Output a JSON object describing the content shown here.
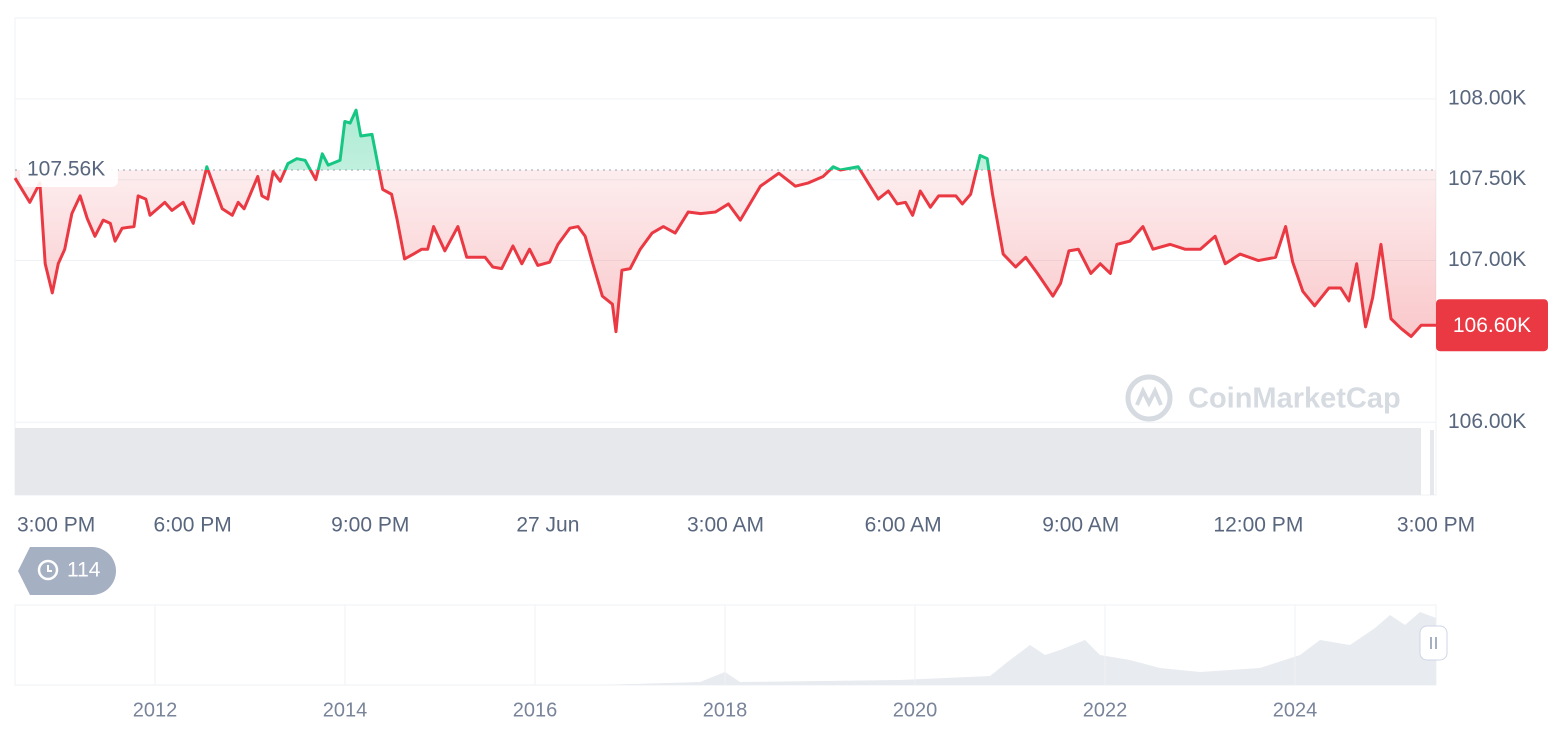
{
  "chart_data": {
    "type": "line",
    "x": [
      0,
      0.25,
      0.42,
      0.51,
      0.63,
      0.73,
      0.84,
      0.96,
      1.1,
      1.22,
      1.35,
      1.49,
      1.61,
      1.69,
      1.81,
      2.01,
      2.08,
      2.21,
      2.28,
      2.53,
      2.65,
      2.84,
      3.01,
      3.24,
      3.5,
      3.67,
      3.77,
      3.87,
      4.1,
      4.17,
      4.27,
      4.36,
      4.48,
      4.61,
      4.76,
      4.9,
      5.08,
      5.19,
      5.29,
      5.49,
      5.57,
      5.66,
      5.76,
      5.84,
      6.03,
      6.21,
      6.36,
      6.45,
      6.58,
      6.73,
      6.87,
      6.97,
      7.07,
      7.26,
      7.48,
      7.63,
      7.94,
      8.07,
      8.22,
      8.41,
      8.56,
      8.69,
      8.83,
      9.03,
      9.17,
      9.37,
      9.51,
      9.63,
      9.76,
      9.92,
      10.09,
      10.15,
      10.25,
      10.39,
      10.56,
      10.76,
      10.95,
      11.15,
      11.37,
      11.58,
      11.83,
      12.05,
      12.25,
      12.59,
      12.9,
      13.18,
      13.4,
      13.65,
      13.82,
      13.94,
      14.24,
      14.41,
      14.58,
      14.75,
      14.9,
      15.04,
      15.16,
      15.29,
      15.46,
      15.6,
      15.89,
      16,
      16.14,
      16.3,
      16.42,
      16.51,
      16.69,
      16.9,
      17.07,
      17.27,
      17.53,
      17.66,
      17.8,
      17.96,
      18.17,
      18.33,
      18.5,
      18.61,
      18.83,
      19.05,
      19.22,
      19.51,
      19.76,
      20.02,
      20.27,
      20.44,
      20.69,
      21,
      21.29,
      21.46,
      21.58,
      21.75,
      21.95,
      22.19,
      22.39,
      22.53,
      22.66,
      22.81,
      22.93,
      23.07,
      23.24,
      23.41,
      23.58,
      23.75,
      24
    ],
    "values": [
      107.51,
      107.36,
      107.48,
      106.98,
      106.8,
      106.98,
      107.07,
      107.29,
      107.4,
      107.26,
      107.15,
      107.25,
      107.23,
      107.12,
      107.2,
      107.21,
      107.4,
      107.38,
      107.28,
      107.36,
      107.31,
      107.36,
      107.23,
      107.58,
      107.32,
      107.28,
      107.36,
      107.32,
      107.52,
      107.4,
      107.38,
      107.55,
      107.49,
      107.6,
      107.63,
      107.62,
      107.5,
      107.66,
      107.59,
      107.62,
      107.86,
      107.85,
      107.93,
      107.77,
      107.78,
      107.44,
      107.41,
      107.26,
      107.01,
      107.04,
      107.07,
      107.07,
      107.21,
      107.06,
      107.21,
      107.02,
      107.02,
      106.96,
      106.95,
      107.09,
      106.98,
      107.07,
      106.97,
      106.99,
      107.1,
      107.2,
      107.21,
      107.15,
      106.98,
      106.78,
      106.73,
      106.56,
      106.94,
      106.95,
      107.07,
      107.17,
      107.21,
      107.17,
      107.3,
      107.29,
      107.3,
      107.35,
      107.25,
      107.46,
      107.54,
      107.46,
      107.48,
      107.52,
      107.58,
      107.56,
      107.58,
      107.48,
      107.38,
      107.43,
      107.35,
      107.36,
      107.28,
      107.43,
      107.33,
      107.4,
      107.4,
      107.35,
      107.41,
      107.65,
      107.63,
      107.41,
      107.04,
      106.96,
      107.02,
      106.92,
      106.78,
      106.86,
      107.06,
      107.07,
      106.92,
      106.98,
      106.92,
      107.1,
      107.12,
      107.21,
      107.07,
      107.1,
      107.07,
      107.07,
      107.15,
      106.98,
      107.04,
      107,
      107.02,
      107.21,
      106.99,
      106.81,
      106.72,
      106.83,
      106.83,
      106.75,
      106.98,
      106.59,
      106.77,
      107.1,
      106.64,
      106.58,
      106.53,
      106.6,
      106.6
    ],
    "up_color": "#16c784",
    "down_color": "#ea3943",
    "xlim": [
      0,
      24
    ],
    "xticks": [
      {
        "value": 0,
        "label": "3:00 PM"
      },
      {
        "value": 3,
        "label": "6:00 PM"
      },
      {
        "value": 6,
        "label": "9:00 PM"
      },
      {
        "value": 9,
        "label": "27 Jun"
      },
      {
        "value": 12,
        "label": "3:00 AM"
      },
      {
        "value": 15,
        "label": "6:00 AM"
      },
      {
        "value": 18,
        "label": "9:00 AM"
      },
      {
        "value": 21,
        "label": "12:00 PM"
      },
      {
        "value": 24,
        "label": "3:00 PM"
      }
    ],
    "ylim": [
      105.55,
      108.5
    ],
    "yticks": [
      {
        "value": 106,
        "label": "106.00K"
      },
      {
        "value": 107,
        "label": "107.00K"
      },
      {
        "value": 107.5,
        "label": "107.50K"
      },
      {
        "value": 108,
        "label": "108.00K"
      }
    ],
    "reference": {
      "value": 107.56,
      "label": "107.56K"
    },
    "last_price": {
      "value": 106.6,
      "label": "106.60K"
    },
    "grid": true,
    "watermark": "CoinMarketCap",
    "history_count": "114",
    "navigator_labels": [
      "2012",
      "2014",
      "2016",
      "2018",
      "2020",
      "2022",
      "2024"
    ]
  }
}
